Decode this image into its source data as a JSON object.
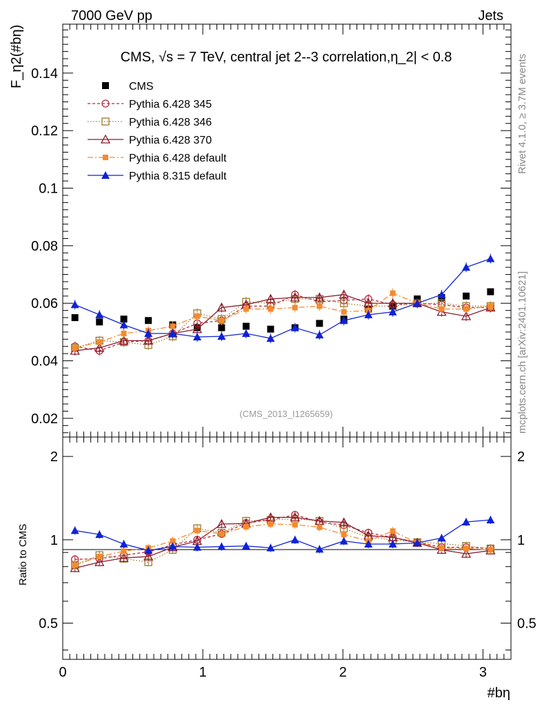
{
  "header": {
    "energy_label": "7000 GeV pp",
    "process_label": "Jets"
  },
  "side_labels": {
    "rivet": "Rivet 4.1.0, ≥ 3.7M events",
    "mcplots": "mcplots.cern.ch [arXiv:2401.10621]"
  },
  "chart_data": {
    "type": "scatter",
    "title": "CMS, √s = 7 TeV, central jet 2--3 correlation,η_2| < 0.8",
    "ylabel": "F_η2(#bη)",
    "xlabel": "#bη",
    "watermark": "(CMS_2013_I1265659)",
    "xlim": [
      0,
      3.2
    ],
    "ylim": [
      0.0135,
      0.157
    ],
    "x_ticks": [
      "0",
      "1",
      "2",
      "3"
    ],
    "y_ticks": [
      "0.02",
      "0.04",
      "0.06",
      "0.08",
      "0.1",
      "0.12",
      "0.14"
    ],
    "x": [
      0.087,
      0.262,
      0.436,
      0.611,
      0.785,
      0.96,
      1.134,
      1.309,
      1.484,
      1.658,
      1.833,
      2.007,
      2.182,
      2.356,
      2.531,
      2.705,
      2.88,
      3.054
    ],
    "series": [
      {
        "name": "CMS",
        "color": "#000000",
        "values": [
          0.055,
          0.0535,
          0.0545,
          0.054,
          0.0525,
          0.0515,
          0.0515,
          0.052,
          0.051,
          0.0515,
          0.053,
          0.0545,
          0.058,
          0.059,
          0.0615,
          0.062,
          0.0625,
          0.064
        ]
      },
      {
        "name": "Pythia 6.428 345",
        "color": "#b5263c",
        "values": [
          0.045,
          0.0435,
          0.0465,
          0.047,
          0.0495,
          0.053,
          0.054,
          0.059,
          0.059,
          0.063,
          0.0605,
          0.061,
          0.0615,
          0.0595,
          0.06,
          0.0595,
          0.0585,
          0.0585
        ]
      },
      {
        "name": "Pythia 6.428 346",
        "color": "#9c7a2e",
        "values": [
          0.0445,
          0.047,
          0.0465,
          0.0455,
          0.0485,
          0.0565,
          0.0545,
          0.0605,
          0.06,
          0.0615,
          0.0615,
          0.06,
          0.059,
          0.059,
          0.06,
          0.06,
          0.059,
          0.059
        ]
      },
      {
        "name": "Pythia 6.428 370",
        "color": "#8b1a2a",
        "values": [
          0.0435,
          0.0445,
          0.047,
          0.047,
          0.0495,
          0.051,
          0.0585,
          0.0595,
          0.0615,
          0.062,
          0.062,
          0.063,
          0.06,
          0.06,
          0.06,
          0.057,
          0.0555,
          0.0585
        ]
      },
      {
        "name": "Pythia 6.428 default",
        "color": "#f58a2e",
        "values": [
          0.0445,
          0.0465,
          0.0495,
          0.0505,
          0.052,
          0.0555,
          0.054,
          0.058,
          0.058,
          0.0585,
          0.059,
          0.057,
          0.0575,
          0.0635,
          0.06,
          0.058,
          0.058,
          0.059
        ]
      },
      {
        "name": "Pythia 8.315 default",
        "color": "#0f22d6",
        "values": [
          0.0595,
          0.056,
          0.0525,
          0.0495,
          0.0495,
          0.0483,
          0.0485,
          0.0495,
          0.0478,
          0.0515,
          0.049,
          0.054,
          0.056,
          0.057,
          0.06,
          0.063,
          0.0725,
          0.0755
        ]
      }
    ],
    "ratio_panel": {
      "ylabel": "Ratio to CMS",
      "ylim": [
        0.37,
        2.35
      ],
      "y_ticks": [
        "0.5",
        "1",
        "2"
      ],
      "series": [
        {
          "name": "Pythia 6.428 345",
          "values": [
            0.85,
            0.855,
            0.88,
            0.905,
            0.96,
            1.0,
            1.05,
            1.15,
            1.18,
            1.23,
            1.16,
            1.13,
            1.06,
            1.02,
            0.98,
            0.94,
            0.94,
            0.93
          ]
        },
        {
          "name": "Pythia 6.428 346",
          "values": [
            0.81,
            0.88,
            0.855,
            0.83,
            0.92,
            1.1,
            1.06,
            1.17,
            1.18,
            1.19,
            1.17,
            1.1,
            1.02,
            1.0,
            0.98,
            0.97,
            0.95,
            0.93
          ]
        },
        {
          "name": "Pythia 6.428 370",
          "values": [
            0.79,
            0.83,
            0.86,
            0.87,
            0.94,
            0.99,
            1.14,
            1.145,
            1.205,
            1.205,
            1.17,
            1.155,
            1.035,
            1.02,
            0.975,
            0.92,
            0.89,
            0.915
          ]
        },
        {
          "name": "Pythia 6.428 default",
          "values": [
            0.81,
            0.87,
            0.91,
            0.935,
            0.99,
            1.08,
            1.05,
            1.115,
            1.14,
            1.135,
            1.11,
            1.045,
            0.99,
            1.075,
            0.975,
            0.935,
            0.93,
            0.92
          ]
        },
        {
          "name": "Pythia 8.315 default",
          "values": [
            1.08,
            1.045,
            0.965,
            0.915,
            0.945,
            0.94,
            0.945,
            0.95,
            0.935,
            1.0,
            0.925,
            0.99,
            0.965,
            0.965,
            0.975,
            1.015,
            1.16,
            1.18
          ]
        }
      ]
    }
  }
}
